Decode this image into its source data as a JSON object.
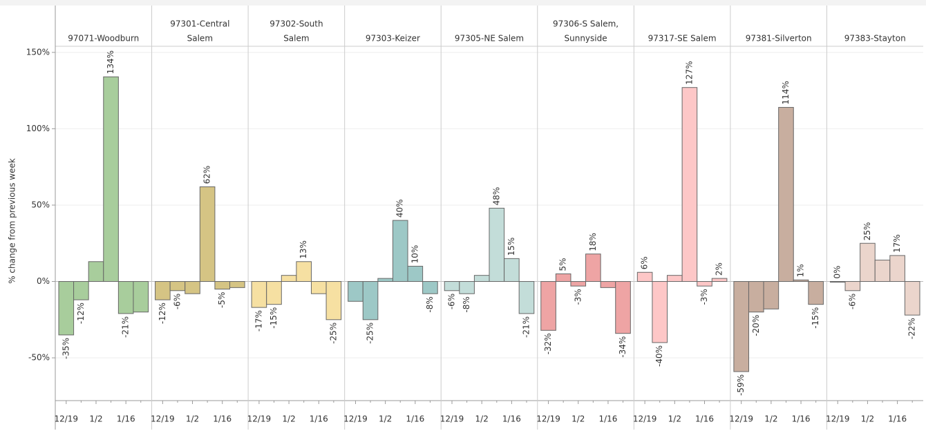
{
  "chart_data": {
    "type": "bar",
    "ylabel": "% change from previous week",
    "ylim": [
      -78,
      154
    ],
    "yticks": [
      {
        "value": -50,
        "label": "-50%"
      },
      {
        "value": 0,
        "label": "0%"
      },
      {
        "value": 50,
        "label": "50%"
      },
      {
        "value": 100,
        "label": "100%"
      },
      {
        "value": 150,
        "label": "150%"
      }
    ],
    "grid": true,
    "categories": [
      "12/19",
      null,
      "1/2",
      null,
      "1/16",
      null
    ],
    "panels": [
      {
        "title": [
          "97071-Woodburn"
        ],
        "color": "#a8cd9c",
        "values": [
          -35,
          -12,
          13,
          134,
          -21,
          -20
        ],
        "value_labels": [
          "-35%",
          "-12%",
          null,
          "134%",
          "-21%",
          null
        ]
      },
      {
        "title": [
          "97301-Central",
          "Salem"
        ],
        "color": "#d5c484",
        "values": [
          -12,
          -6,
          -8,
          62,
          -5,
          -4
        ],
        "value_labels": [
          "-12%",
          "-6%",
          null,
          "62%",
          "-5%",
          null
        ]
      },
      {
        "title": [
          "97302-South",
          "Salem"
        ],
        "color": "#f6e0a2",
        "values": [
          -17,
          -15,
          4,
          13,
          -8,
          -25
        ],
        "value_labels": [
          "-17%",
          "-15%",
          null,
          "13%",
          null,
          "-25%"
        ]
      },
      {
        "title": [
          "97303-Keizer"
        ],
        "color": "#9dc8c6",
        "values": [
          -13,
          -25,
          2,
          40,
          10,
          -8
        ],
        "value_labels": [
          null,
          "-25%",
          null,
          "40%",
          "10%",
          "-8%"
        ]
      },
      {
        "title": [
          "97305-NE Salem"
        ],
        "color": "#c3ddd9",
        "values": [
          -6,
          -8,
          4,
          48,
          15,
          -21
        ],
        "value_labels": [
          "-6%",
          "-8%",
          null,
          "48%",
          "15%",
          "-21%"
        ]
      },
      {
        "title": [
          "97306-S Salem,",
          "Sunnyside"
        ],
        "color": "#eea4a4",
        "values": [
          -32,
          5,
          -3,
          18,
          -4,
          -34
        ],
        "value_labels": [
          "-32%",
          "5%",
          "-3%",
          "18%",
          null,
          "-34%"
        ]
      },
      {
        "title": [
          "97317-SE Salem"
        ],
        "color": "#fdc7c7",
        "values": [
          6,
          -40,
          4,
          127,
          -3,
          2
        ],
        "value_labels": [
          "6%",
          "-40%",
          null,
          "127%",
          "-3%",
          "2%"
        ]
      },
      {
        "title": [
          "97381-Silverton"
        ],
        "color": "#c8ae9f",
        "values": [
          -59,
          -20,
          -18,
          114,
          1,
          -15
        ],
        "value_labels": [
          "-59%",
          "-20%",
          null,
          "114%",
          "1%",
          "-15%"
        ]
      },
      {
        "title": [
          "97383-Stayton"
        ],
        "color": "#ebd5cc",
        "values": [
          0,
          -6,
          25,
          14,
          17,
          -22
        ],
        "value_labels": [
          "0%",
          "-6%",
          "25%",
          null,
          "17%",
          "-22%"
        ]
      }
    ]
  }
}
